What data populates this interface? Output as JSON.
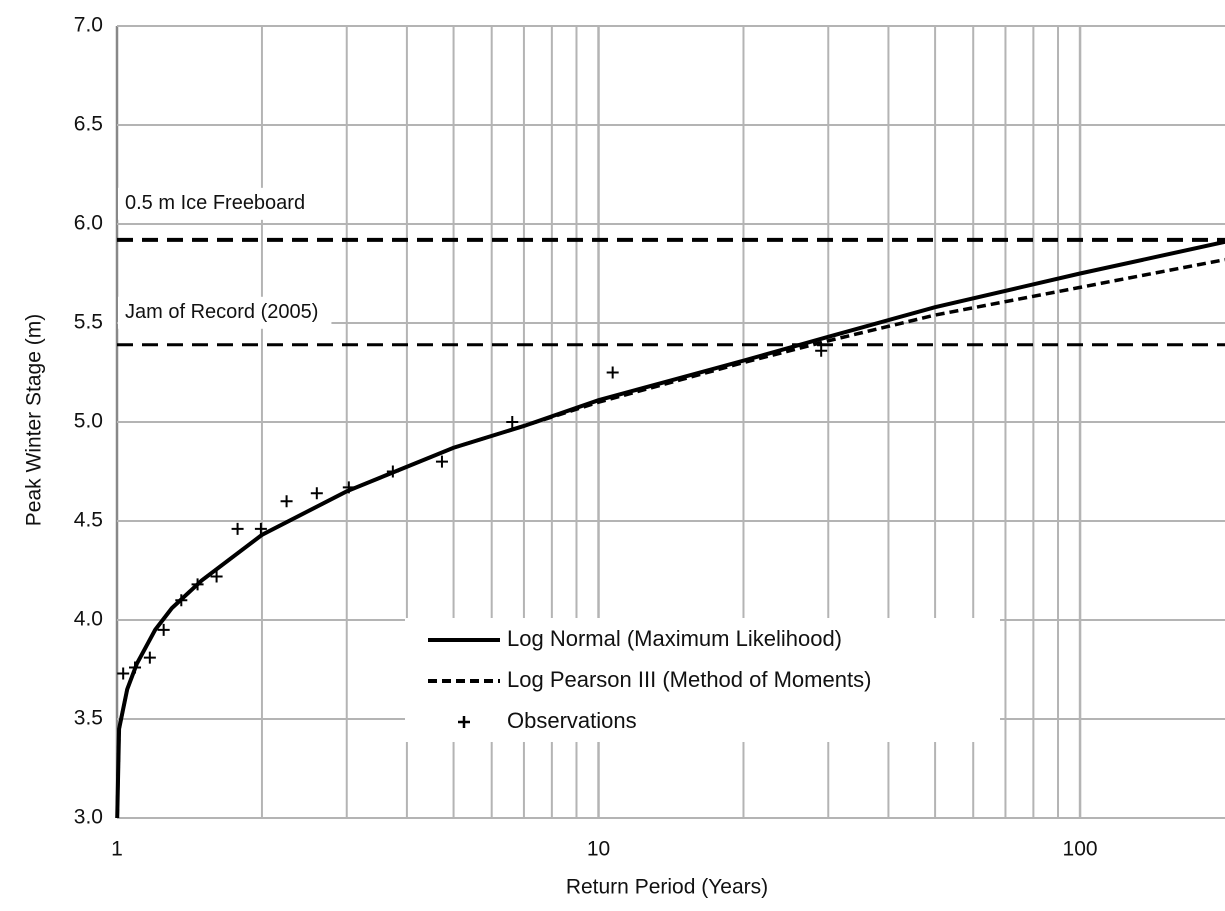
{
  "chart_data": {
    "type": "line",
    "xlabel": "Return Period (Years)",
    "ylabel": "Peak Winter Stage (m)",
    "xscale": "log",
    "xlim": [
      1,
      200
    ],
    "ylim": [
      3.0,
      7.0
    ],
    "xticks": [
      1,
      10,
      100
    ],
    "x_minor_grid": [
      2,
      3,
      4,
      5,
      6,
      7,
      8,
      9,
      20,
      30,
      40,
      50,
      60,
      70,
      80,
      90
    ],
    "yticks": [
      {
        "value": 3.0,
        "label": "3.0"
      },
      3.5,
      {
        "value": 4.0,
        "label": "4.0"
      },
      4.5,
      {
        "value": 5.0,
        "label": "5.0"
      },
      5.5,
      {
        "value": 6.0,
        "label": "6.0"
      },
      6.5,
      {
        "value": 7.0,
        "label": "7.0"
      }
    ],
    "grid": true,
    "grid_color": "#b4b4b4",
    "hlines": [
      {
        "label": "0.5 m Ice Freeboard",
        "y": 5.92
      },
      {
        "label": "Jam of Record (2005)",
        "y": 5.39
      }
    ],
    "series": [
      {
        "name": "Log Normal (Maximum Likelihood)",
        "color": "#000000",
        "style": "solid",
        "x": [
          1.001,
          1.01,
          1.05,
          1.1,
          1.2,
          1.3,
          1.5,
          2,
          3,
          5,
          7,
          10,
          20,
          30,
          50,
          100,
          200
        ],
        "values": [
          3.0,
          3.45,
          3.65,
          3.78,
          3.95,
          4.06,
          4.2,
          4.43,
          4.65,
          4.87,
          4.98,
          5.11,
          5.31,
          5.43,
          5.58,
          5.75,
          5.91
        ]
      },
      {
        "name": "Log Pearson III (Method of Moments)",
        "color": "#000000",
        "style": "dashed",
        "x": [
          1.001,
          1.01,
          1.05,
          1.1,
          1.2,
          1.3,
          1.5,
          2,
          3,
          5,
          7,
          10,
          20,
          30,
          50,
          100,
          200
        ],
        "values": [
          3.0,
          3.45,
          3.65,
          3.78,
          3.95,
          4.06,
          4.2,
          4.43,
          4.65,
          4.87,
          4.98,
          5.1,
          5.3,
          5.41,
          5.54,
          5.68,
          5.82
        ]
      },
      {
        "name": "Observations",
        "color": "#000000",
        "style": "marker",
        "x": [
          1.03,
          1.09,
          1.17,
          1.25,
          1.36,
          1.47,
          1.61,
          1.78,
          1.99,
          2.25,
          2.6,
          3.03,
          3.74,
          4.73,
          6.62,
          10.7,
          29.0
        ],
        "values": [
          3.73,
          3.76,
          3.81,
          3.95,
          4.1,
          4.18,
          4.22,
          4.46,
          4.46,
          4.6,
          4.64,
          4.67,
          4.75,
          4.8,
          5.0,
          5.25,
          5.36
        ]
      }
    ]
  }
}
